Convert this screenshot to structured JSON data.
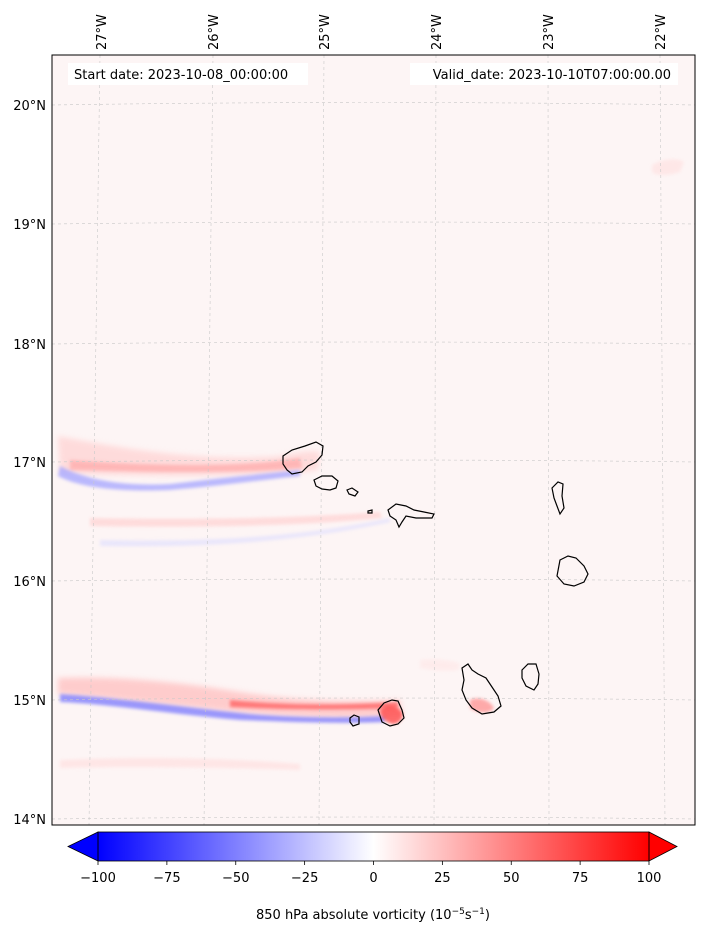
{
  "map": {
    "start_date_label": "Start date: 2023-10-08_00:00:00",
    "valid_date_label": "Valid_date: 2023-10-10T07:00:00.00",
    "lon_ticks": [
      "27°W",
      "26°W",
      "25°W",
      "24°W",
      "23°W",
      "22°W"
    ],
    "lat_ticks": [
      "20°N",
      "19°N",
      "18°N",
      "17°N",
      "16°N",
      "15°N",
      "14°N"
    ],
    "extent": {
      "lon_min": -27.35,
      "lon_max": -21.8,
      "lat_min": 13.95,
      "lat_max": 20.4
    },
    "background_color": "#fdf5f5",
    "islands": [
      "Santo Antão",
      "São Vicente",
      "Santa Luzia",
      "São Nicolau",
      "Sal",
      "Boa Vista",
      "Fogo",
      "Brava",
      "Santiago",
      "Maio"
    ]
  },
  "colorbar": {
    "label_prefix": "850 hPa absolute vorticity (10",
    "label_exp1": "−5",
    "label_mid": "s",
    "label_exp2": "−1",
    "label_suffix": ")",
    "min": -100,
    "max": 100,
    "tick_values": [
      -100,
      -75,
      -50,
      -25,
      0,
      25,
      50,
      75,
      100
    ],
    "tick_labels": [
      "−100",
      "−75",
      "−50",
      "−25",
      "0",
      "25",
      "50",
      "75",
      "100"
    ],
    "colormap": "bwr",
    "extend": "both"
  }
}
